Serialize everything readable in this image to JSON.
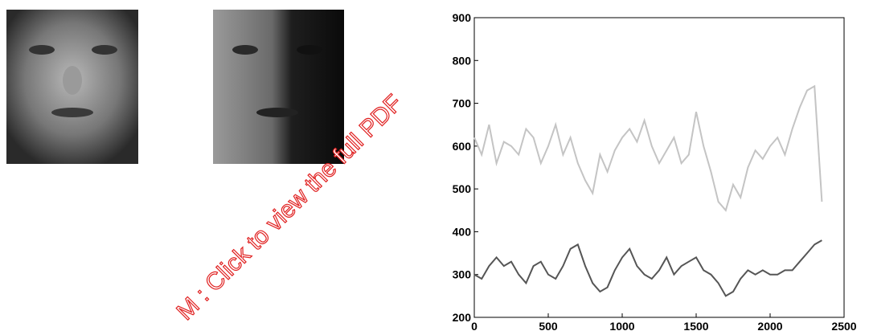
{
  "chart_data": {
    "type": "line",
    "x": [
      0,
      50,
      100,
      150,
      200,
      250,
      300,
      350,
      400,
      450,
      500,
      550,
      600,
      650,
      700,
      750,
      800,
      850,
      900,
      950,
      1000,
      1050,
      1100,
      1150,
      1200,
      1250,
      1300,
      1350,
      1400,
      1450,
      1500,
      1550,
      1600,
      1650,
      1700,
      1750,
      1800,
      1850,
      1900,
      1950,
      2000,
      2050,
      2100,
      2150,
      2200,
      2250,
      2300,
      2350
    ],
    "series": [
      {
        "color": "#c4c4c4",
        "values": [
          620,
          580,
          650,
          560,
          610,
          600,
          580,
          640,
          620,
          560,
          600,
          650,
          580,
          620,
          560,
          520,
          490,
          580,
          540,
          590,
          620,
          640,
          610,
          660,
          600,
          560,
          590,
          620,
          560,
          580,
          680,
          600,
          540,
          470,
          450,
          510,
          480,
          550,
          590,
          570,
          600,
          620,
          580,
          640,
          690,
          730,
          740,
          470
        ]
      },
      {
        "color": "#555555",
        "values": [
          300,
          290,
          320,
          340,
          320,
          330,
          300,
          280,
          320,
          330,
          300,
          290,
          320,
          360,
          370,
          320,
          280,
          260,
          270,
          310,
          340,
          360,
          320,
          300,
          290,
          310,
          340,
          300,
          320,
          330,
          340,
          310,
          300,
          280,
          250,
          260,
          290,
          310,
          300,
          310,
          300,
          300,
          310,
          310,
          330,
          350,
          370,
          380
        ]
      }
    ],
    "xlim": [
      0,
      2500
    ],
    "xticks": [
      0,
      500,
      1000,
      1500,
      2000,
      2500
    ],
    "ylim": [
      200,
      900
    ],
    "yticks": [
      200,
      300,
      400,
      500,
      600,
      700,
      800,
      900
    ]
  },
  "watermark": "M : Click to view the full PDF"
}
